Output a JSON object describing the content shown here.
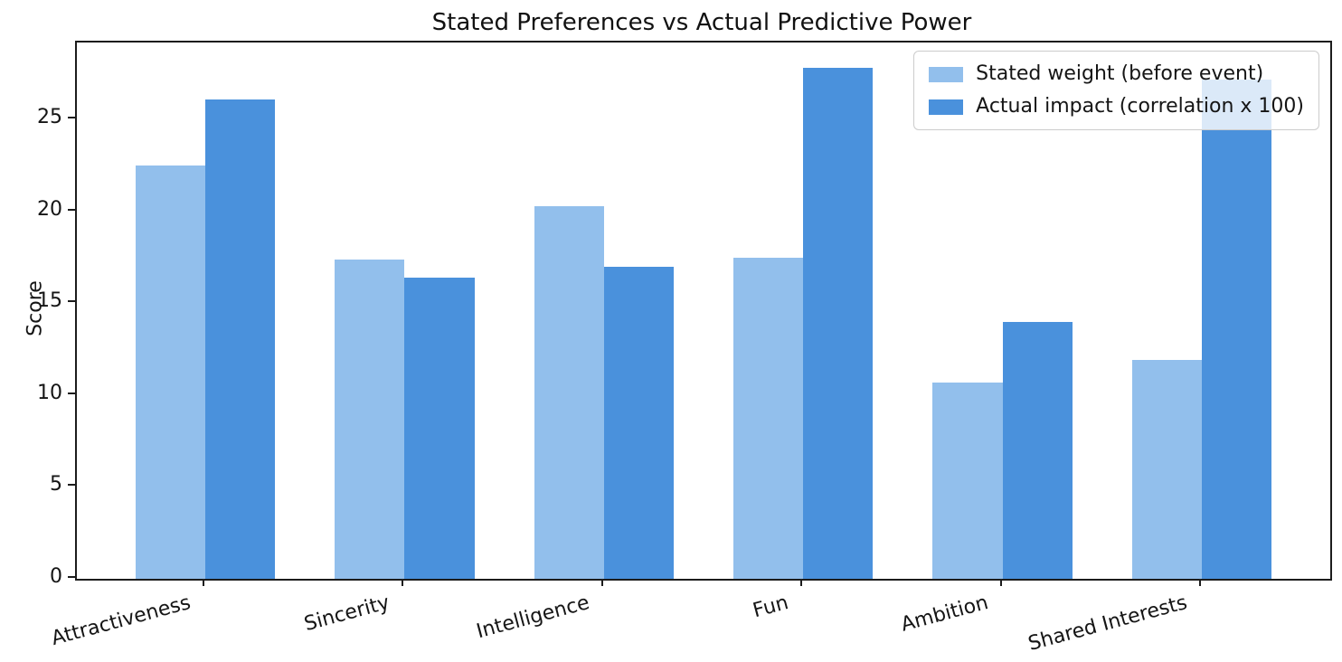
{
  "title": "Stated Preferences vs Actual Predictive Power",
  "chart_data": {
    "type": "bar",
    "title": "Stated Preferences vs Actual Predictive Power",
    "categories": [
      "Attractiveness",
      "Sincerity",
      "Intelligence",
      "Fun",
      "Ambition",
      "Shared Interests"
    ],
    "series": [
      {
        "name": "Stated weight (before event)",
        "color": "#92bfec",
        "values": [
          22.5,
          17.4,
          20.3,
          17.5,
          10.7,
          11.9
        ]
      },
      {
        "name": "Actual impact (correlation x 100)",
        "color": "#4a91dc",
        "values": [
          26.1,
          16.4,
          17.0,
          27.8,
          14.0,
          27.2
        ]
      }
    ],
    "xlabel": "",
    "ylabel": "Score",
    "yticks": [
      0,
      5,
      10,
      15,
      20,
      25
    ],
    "ylim": [
      0,
      29.2
    ],
    "grid": false,
    "legend_position": "upper right",
    "bar_width_fraction": 0.35,
    "xtick_rotation_deg": 15
  }
}
